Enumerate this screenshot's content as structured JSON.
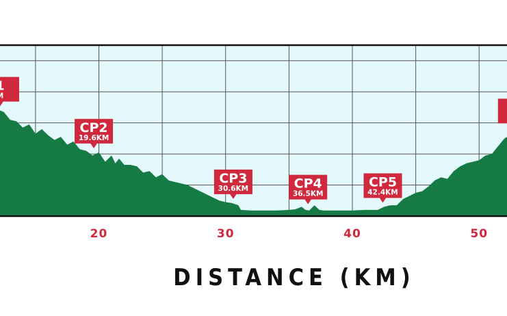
{
  "chart_data": {
    "type": "area",
    "title": "",
    "xlabel": "DISTANCE (KM)",
    "ylabel": "",
    "xlim": [
      12.2,
      52.2
    ],
    "ylim": [
      0,
      5.5
    ],
    "grid": true,
    "x_ticks": [
      20,
      30,
      40,
      50
    ],
    "x_tick_labels": [
      "20",
      "30",
      "40",
      "50"
    ],
    "series": [
      {
        "x": [
          12.2,
          12.5,
          13.0,
          13.5,
          14.0,
          14.5,
          15.0,
          15.5,
          16.0,
          16.5,
          17.0,
          17.5,
          18.0,
          18.5,
          19.0,
          19.5,
          20.0,
          20.5,
          21.0,
          21.3,
          21.6,
          22.0,
          22.5,
          23.0,
          23.5,
          24.0,
          24.5,
          25.0,
          25.5,
          26.0,
          26.5,
          27.0,
          27.5,
          28.0,
          28.5,
          29.0,
          29.5,
          30.0,
          30.5,
          31.0,
          31.2,
          32.0,
          33.0,
          34.0,
          35.0,
          35.5,
          36.0,
          36.3,
          36.6,
          37.0,
          37.4,
          37.7,
          38.0,
          39.0,
          40.0,
          41.0,
          42.0,
          42.5,
          43.0,
          43.5,
          44.0,
          44.5,
          45.0,
          45.5,
          46.0,
          46.5,
          47.0,
          47.5,
          48.0,
          48.5,
          49.0,
          49.5,
          50.0,
          50.5,
          51.0,
          51.5,
          52.0,
          52.2
        ],
        "y": [
          3.4,
          3.35,
          3.1,
          3.05,
          2.85,
          2.95,
          2.65,
          2.8,
          2.6,
          2.45,
          2.55,
          2.3,
          2.4,
          2.15,
          2.1,
          1.95,
          2.05,
          1.75,
          1.95,
          1.7,
          1.85,
          1.65,
          1.65,
          1.6,
          1.4,
          1.45,
          1.25,
          1.35,
          1.15,
          1.1,
          1.05,
          1.0,
          0.9,
          0.8,
          0.7,
          0.6,
          0.5,
          0.45,
          0.42,
          0.35,
          0.2,
          0.18,
          0.18,
          0.18,
          0.2,
          0.22,
          0.3,
          0.2,
          0.18,
          0.35,
          0.2,
          0.18,
          0.18,
          0.18,
          0.18,
          0.2,
          0.2,
          0.3,
          0.35,
          0.35,
          0.55,
          0.65,
          0.75,
          0.8,
          0.95,
          1.15,
          1.25,
          1.2,
          1.45,
          1.6,
          1.7,
          1.75,
          1.8,
          1.95,
          2.0,
          2.25,
          2.5,
          2.55
        ]
      }
    ],
    "checkpoints": [
      {
        "name": "1",
        "dist": "M",
        "km": 12.2,
        "elev": 3.4
      },
      {
        "name": "CP2",
        "dist": "19.6KM",
        "km": 19.6,
        "elev": 2.05
      },
      {
        "name": "CP3",
        "dist": "30.6KM",
        "km": 30.6,
        "elev": 0.42
      },
      {
        "name": "CP4",
        "dist": "36.5KM",
        "km": 36.5,
        "elev": 0.25
      },
      {
        "name": "CP5",
        "dist": "42.4KM",
        "km": 42.4,
        "elev": 0.3
      },
      {
        "name": "",
        "dist": "",
        "km": 53.0,
        "elev": 2.7
      }
    ],
    "colors": {
      "plot_background": "#e4f9fb",
      "area_fill": "#157a44",
      "grid": "#555555",
      "frame": "#111111",
      "marker": "#d0283c",
      "tick_label": "#d0283c",
      "axis_title": "#111111"
    }
  }
}
